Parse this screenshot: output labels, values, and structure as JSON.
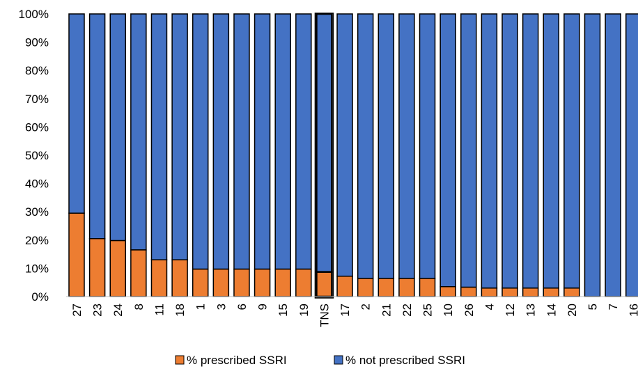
{
  "chart_data": {
    "type": "bar",
    "stacked": true,
    "percent_stacked": true,
    "categories": [
      "27",
      "23",
      "24",
      "8",
      "11",
      "18",
      "1",
      "3",
      "6",
      "9",
      "15",
      "19",
      "TNS",
      "17",
      "2",
      "21",
      "22",
      "25",
      "10",
      "26",
      "4",
      "12",
      "13",
      "14",
      "20",
      "5",
      "7",
      "16"
    ],
    "highlighted_category": "TNS",
    "series": [
      {
        "name": "% prescribed SSRI",
        "color": "#ED7D31",
        "values": [
          29.5,
          20.5,
          19.8,
          16.5,
          13,
          13,
          9.7,
          9.7,
          9.7,
          9.7,
          9.7,
          9.7,
          8.7,
          7.2,
          6.4,
          6.4,
          6.4,
          6.4,
          3.5,
          3.3,
          3,
          3,
          3,
          3,
          3,
          0,
          0,
          0
        ]
      },
      {
        "name": "% not prescribed SSRI",
        "color": "#4472C4",
        "values": [
          70.5,
          79.5,
          80.2,
          83.5,
          87,
          87,
          90.3,
          90.3,
          90.3,
          90.3,
          90.3,
          90.3,
          91.3,
          92.8,
          93.6,
          93.6,
          93.6,
          93.6,
          96.5,
          96.7,
          97,
          97,
          97,
          97,
          97,
          100,
          100,
          100
        ]
      }
    ],
    "ylim": [
      0,
      100
    ],
    "yticks": [
      "0%",
      "10%",
      "20%",
      "30%",
      "40%",
      "50%",
      "60%",
      "70%",
      "80%",
      "90%",
      "100%"
    ],
    "xlabel": "",
    "ylabel": "",
    "legend_position": "bottom",
    "grid": false
  }
}
